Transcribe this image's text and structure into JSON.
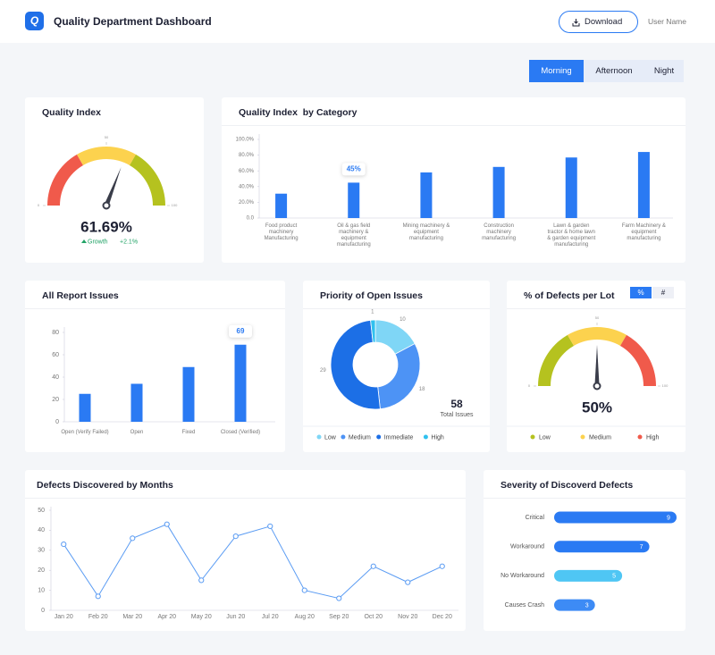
{
  "header": {
    "logo": "Q",
    "title": "Quality Department Dashboard",
    "download": "Download",
    "user": "User Name"
  },
  "shift_tabs": {
    "options": [
      "Morning",
      "Afternoon",
      "Night"
    ],
    "active": "Morning"
  },
  "chart_data": [
    {
      "type": "gauge",
      "title": "Quality Index",
      "value": 61.69,
      "value_label": "61.69%",
      "ylim": [
        0,
        100
      ],
      "yticks": [
        0,
        50,
        100
      ],
      "colors": [
        "#f05a4b",
        "#fcd24e",
        "#b5c21f"
      ],
      "growth_label": "Growth",
      "growth_text": "+2.1%"
    },
    {
      "type": "bar",
      "title": "Quality Index  by Category",
      "categories": [
        "Food product machinery Manufacturing",
        "Oil & gas field machinery & equipment manufacturing",
        "Mining machinery & equipment manufacturing",
        "Construction machinery manufacturing",
        "Lawn & garden tractor & home lawn & garden equipment manufacturing",
        "Farm Machinery & equipment manufacturing"
      ],
      "values": [
        31,
        45,
        58,
        65,
        77,
        84
      ],
      "value_labels": [
        null,
        "45%",
        null,
        null,
        null,
        null
      ],
      "color": "#2a7af3",
      "ylim": [
        0,
        100
      ],
      "yticks": [
        {
          "value": 0,
          "label": "0.0"
        },
        {
          "value": 20,
          "label": "20.0%"
        },
        {
          "value": 40,
          "label": "40.0%"
        },
        {
          "value": 60,
          "label": "60.0%"
        },
        {
          "value": 80,
          "label": "80.0%"
        },
        {
          "value": 100,
          "label": "100.0%"
        }
      ],
      "grid": false
    },
    {
      "type": "bar",
      "title": "All Report Issues",
      "categories": [
        "Open (Verify Failed)",
        "Open",
        "Fixed",
        "Closed (Verified)"
      ],
      "values": [
        25,
        34,
        49,
        69
      ],
      "value_labels": [
        null,
        null,
        null,
        "69"
      ],
      "color": "#2a7af3",
      "ylim": [
        0,
        80
      ],
      "yticks": [
        0,
        20,
        40,
        60,
        80
      ],
      "grid": false
    },
    {
      "type": "donut",
      "title": "Priority of Open Issues",
      "categories": [
        "Low",
        "Medium",
        "Immediate",
        "High"
      ],
      "values": [
        10,
        18,
        29,
        1
      ],
      "colors": [
        "#7fd6f6",
        "#4d93f5",
        "#1c6fe6",
        "#30c1ef"
      ],
      "total": 58,
      "total_label": "Total Issues"
    },
    {
      "type": "gauge",
      "title": "% of Defects per Lot",
      "value": 50,
      "value_label": "50%",
      "ylim": [
        0,
        100
      ],
      "yticks": [
        0,
        50,
        100
      ],
      "colors": [
        "#b5c21f",
        "#fcd24e",
        "#f05a4b"
      ],
      "legend": [
        "Low",
        "Medium",
        "High"
      ],
      "toggles": [
        "%",
        "#"
      ],
      "active_toggle": "%"
    },
    {
      "type": "line",
      "title": "Defects Discovered by Months",
      "categories": [
        "Jan 20",
        "Feb 20",
        "Mar 20",
        "Apr 20",
        "May 20",
        "Jun 20",
        "Jul 20",
        "Aug 20",
        "Sep 20",
        "Oct 20",
        "Nov 20",
        "Dec 20"
      ],
      "values": [
        33,
        7,
        36,
        43,
        15,
        37,
        42,
        10,
        6,
        22,
        14,
        22
      ],
      "color": "#5b9cf3",
      "ylim": [
        0,
        50
      ],
      "yticks": [
        0,
        10,
        20,
        30,
        40,
        50
      ],
      "grid": false
    },
    {
      "type": "hbar",
      "title": "Severity of Discoverd Defects",
      "categories": [
        "Critical",
        "Workaround",
        "No Workaround",
        "Causes Crash"
      ],
      "values": [
        9,
        7,
        5,
        3
      ],
      "colors": [
        "#2a7af3",
        "#2a7af3",
        "#4fc6f4",
        "#3d8bf5"
      ]
    }
  ]
}
